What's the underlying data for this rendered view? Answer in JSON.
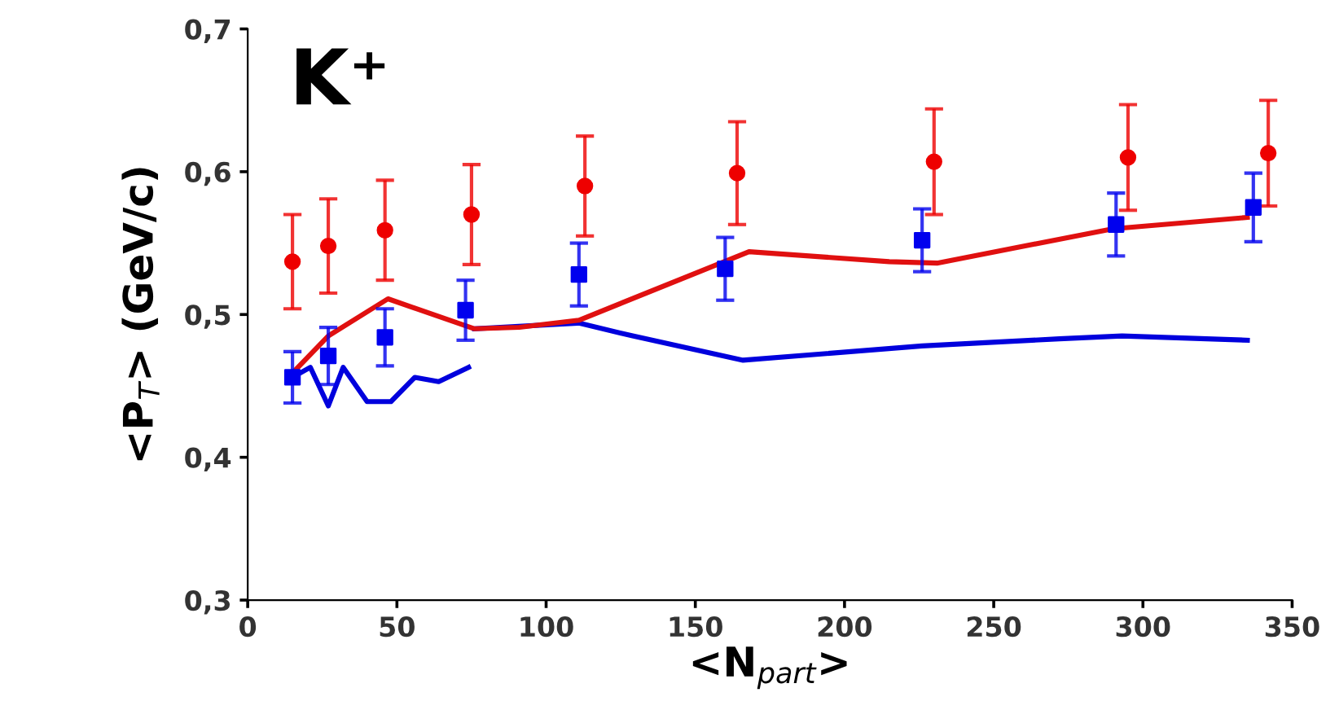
{
  "chart_data": {
    "type": "scatter",
    "xlabel": "<N$_{part}$>",
    "ylabel": "<P$_{T}$> (GeV/c)",
    "annotations": [
      "K⁺"
    ],
    "xlim": [
      0,
      350
    ],
    "xticks": [
      0,
      50,
      100,
      150,
      200,
      250,
      300,
      350
    ],
    "ylim": [
      0.3,
      0.7
    ],
    "yticks": [
      {
        "value": 0.3,
        "label": "0,3"
      },
      {
        "value": 0.4,
        "label": "0,4"
      },
      {
        "value": 0.5,
        "label": "0,5"
      },
      {
        "value": 0.6,
        "label": "0,6"
      },
      {
        "value": 0.7,
        "label": "0,7"
      }
    ],
    "grid": false,
    "legend": false,
    "series": [
      {
        "type": "line",
        "color": "#0000dd",
        "marker": "none",
        "x": [
          15,
          21,
          27,
          32,
          40,
          48,
          56,
          64,
          74,
          76,
          111,
          129,
          166,
          226,
          272,
          293,
          335
        ],
        "values": [
          0.456,
          0.463,
          0.436,
          0.463,
          0.439,
          0.439,
          0.456,
          0.453,
          0.463,
          null,
          0.494,
          0.485,
          0.468,
          0.478,
          0.483,
          0.485,
          0.482
        ]
      },
      {
        "type": "line",
        "color": "#0000dd",
        "marker": "none",
        "x": [
          76,
          111
        ],
        "values": [
          0.49,
          0.494
        ]
      },
      {
        "type": "line",
        "color": "#e01010",
        "marker": "none",
        "x": [
          15,
          27,
          47,
          76,
          91,
          111,
          168,
          215,
          231,
          290,
          335
        ],
        "values": [
          0.459,
          0.485,
          0.511,
          0.49,
          0.491,
          0.496,
          0.544,
          0.537,
          0.536,
          0.56,
          0.568
        ]
      },
      {
        "color": "#ee0000",
        "marker": "circle",
        "x": [
          15,
          27,
          46,
          75,
          113,
          164,
          230,
          295,
          342
        ],
        "values": [
          0.537,
          0.548,
          0.559,
          0.57,
          0.59,
          0.599,
          0.607,
          0.61,
          0.613
        ],
        "errors": [
          0.033,
          0.033,
          0.035,
          0.035,
          0.035,
          0.036,
          0.037,
          0.037,
          0.037
        ]
      },
      {
        "color": "#0000ee",
        "marker": "square",
        "x": [
          15,
          27,
          46,
          73,
          111,
          160,
          226,
          291,
          337
        ],
        "values": [
          0.456,
          0.471,
          0.484,
          0.503,
          0.528,
          0.532,
          0.552,
          0.563,
          0.575
        ],
        "errors": [
          0.018,
          0.02,
          0.02,
          0.021,
          0.022,
          0.022,
          0.022,
          0.022,
          0.024
        ]
      }
    ]
  }
}
